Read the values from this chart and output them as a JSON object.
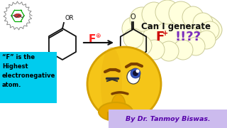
{
  "bg_color": "#ffffff",
  "thought_bubble_color": "#ffffdd",
  "thought_bubble_edge": "#cccc99",
  "thought_bubble_text1": "Can I generate",
  "thought_bubble_text1_color": "#111111",
  "thought_bubble_f_color": "#cc0000",
  "thought_bubble_excl_color": "#7b2fbe",
  "cyan_box_text": "“F” is the\nHighest\nelectronegative\natom.",
  "cyan_box_color": "#00ccee",
  "byline": "By Dr. Tanmoy Biswas.",
  "byline_color": "#5500aa",
  "byline_bg": "#ccbbee",
  "reagent_f_color": "#ff2222",
  "product_f_color": "#ff2222",
  "emoji_face_color": "#f5c518",
  "emoji_face_edge": "#d4a000",
  "emoji_hand_color": "#e8a800",
  "arrow_color": "#000000"
}
